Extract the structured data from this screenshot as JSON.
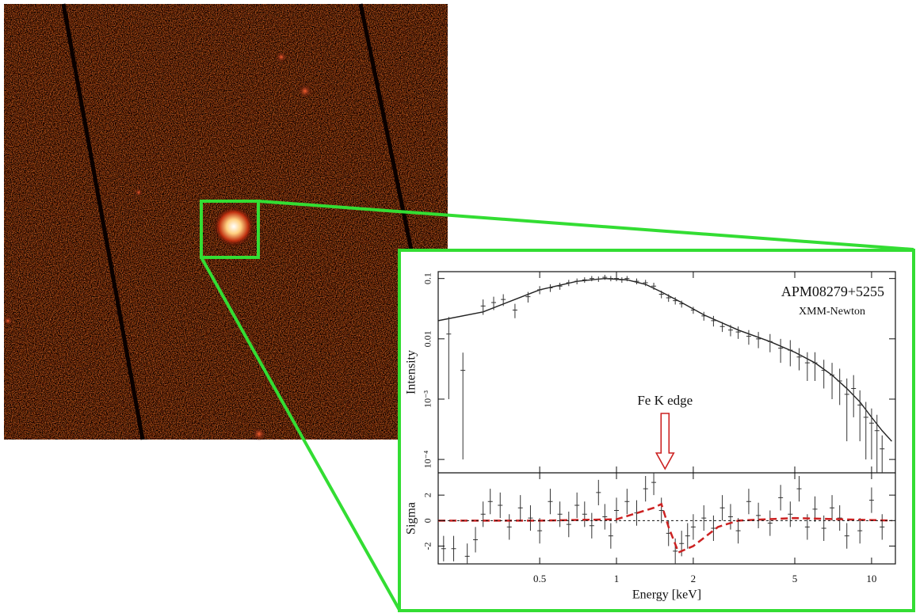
{
  "chart_data": [
    {
      "type": "line",
      "ylabel": "Intensity",
      "log_x": true,
      "log_y": true,
      "xlim": [
        0.2,
        12.4
      ],
      "ylim": [
        6e-05,
        0.13
      ],
      "yticks": [
        {
          "value": 0.1,
          "label": "0.1"
        },
        {
          "value": 0.01,
          "label": "0.01"
        },
        {
          "value": 0.001,
          "label": "10⁻³"
        },
        {
          "value": 0.0001,
          "label": "10⁻⁴"
        }
      ],
      "annotations": [
        {
          "text": "APM08279+5255"
        },
        {
          "text": "XMM-Newton"
        },
        {
          "text": "Fe K edge",
          "x": 1.55
        }
      ],
      "series": [
        {
          "style": "line",
          "color": "#222222",
          "x": [
            0.2,
            0.3,
            0.4,
            0.5,
            0.7,
            0.9,
            1.1,
            1.3,
            1.5,
            1.8,
            2.2,
            3,
            4,
            5,
            6,
            7,
            8,
            9,
            10,
            11,
            12
          ],
          "values": [
            0.02,
            0.028,
            0.045,
            0.065,
            0.09,
            0.1,
            0.095,
            0.08,
            0.06,
            0.04,
            0.025,
            0.014,
            0.009,
            0.006,
            0.004,
            0.0025,
            0.0015,
            0.0009,
            0.0005,
            0.0003,
            0.0002
          ]
        },
        {
          "style": "errorbar",
          "color": "#333333",
          "x": [
            0.22,
            0.25,
            0.3,
            0.33,
            0.36,
            0.4,
            0.45,
            0.5,
            0.55,
            0.6,
            0.65,
            0.7,
            0.75,
            0.8,
            0.85,
            0.9,
            0.95,
            1.0,
            1.05,
            1.1,
            1.2,
            1.3,
            1.4,
            1.5,
            1.6,
            1.7,
            1.8,
            2.0,
            2.2,
            2.4,
            2.6,
            2.8,
            3.0,
            3.3,
            3.6,
            4.0,
            4.4,
            4.8,
            5.2,
            5.6,
            6.0,
            6.5,
            7.0,
            7.5,
            8.0,
            8.5,
            9.0,
            9.5,
            10,
            10.5,
            11
          ],
          "values": [
            0.012,
            0.003,
            0.035,
            0.04,
            0.045,
            0.03,
            0.05,
            0.065,
            0.07,
            0.075,
            0.085,
            0.09,
            0.095,
            0.1,
            0.098,
            0.105,
            0.1,
            0.1,
            0.095,
            0.1,
            0.09,
            0.085,
            0.075,
            0.055,
            0.048,
            0.043,
            0.038,
            0.03,
            0.024,
            0.02,
            0.016,
            0.014,
            0.013,
            0.011,
            0.01,
            0.009,
            0.007,
            0.0065,
            0.005,
            0.004,
            0.004,
            0.003,
            0.0025,
            0.002,
            0.0012,
            0.0015,
            0.0008,
            0.0005,
            0.0004,
            0.0003,
            0.00015
          ],
          "errors": [
            0.011,
            0.0029,
            0.01,
            0.01,
            0.01,
            0.008,
            0.01,
            0.01,
            0.01,
            0.01,
            0.01,
            0.01,
            0.01,
            0.01,
            0.01,
            0.01,
            0.01,
            0.01,
            0.01,
            0.01,
            0.01,
            0.01,
            0.01,
            0.008,
            0.007,
            0.006,
            0.005,
            0.004,
            0.004,
            0.004,
            0.003,
            0.003,
            0.003,
            0.003,
            0.003,
            0.003,
            0.003,
            0.003,
            0.002,
            0.002,
            0.002,
            0.0015,
            0.0015,
            0.0012,
            0.001,
            0.001,
            0.0006,
            0.0004,
            0.0003,
            0.00025,
            0.0001
          ]
        }
      ]
    },
    {
      "type": "line",
      "xlabel": "Energy [keV]",
      "ylabel": "Sigma",
      "log_x": true,
      "xlim": [
        0.2,
        12.4
      ],
      "ylim": [
        -3.4,
        3.75
      ],
      "xticks": [
        0.5,
        1,
        2,
        5,
        10
      ],
      "yticks": [
        -2,
        0,
        2
      ],
      "series": [
        {
          "style": "errorbar",
          "color": "#333333",
          "x": [
            0.21,
            0.23,
            0.26,
            0.28,
            0.3,
            0.32,
            0.35,
            0.38,
            0.42,
            0.46,
            0.5,
            0.55,
            0.6,
            0.65,
            0.7,
            0.75,
            0.8,
            0.85,
            0.9,
            0.95,
            1.0,
            1.1,
            1.2,
            1.3,
            1.4,
            1.5,
            1.6,
            1.7,
            1.8,
            1.9,
            2.0,
            2.2,
            2.4,
            2.6,
            2.8,
            3.0,
            3.3,
            3.6,
            4.0,
            4.4,
            4.8,
            5.2,
            5.6,
            6.0,
            6.5,
            7,
            7.5,
            8,
            9,
            10,
            11
          ],
          "values": [
            -2.2,
            -2.2,
            -2.8,
            -1.5,
            0.5,
            1.5,
            1.2,
            -0.5,
            1,
            0.2,
            -0.8,
            1.5,
            0.5,
            -0.3,
            1.2,
            0.5,
            -0.4,
            2.2,
            0.3,
            -1.2,
            0.8,
            1.5,
            0.6,
            2.5,
            3.0,
            0.8,
            -1,
            -2.4,
            -1.8,
            -1.2,
            -0.5,
            0.2,
            -0.6,
            1,
            0.3,
            -0.8,
            1.5,
            0.4,
            -0.2,
            1.8,
            0.5,
            2.5,
            -0.5,
            0.9,
            -0.6,
            1,
            0.2,
            -1.2,
            -0.8,
            1.6,
            -0.5
          ],
          "errors": [
            1,
            1,
            1,
            1,
            1,
            1,
            1,
            1,
            1,
            1,
            1,
            1,
            1,
            1,
            1,
            1,
            1,
            1,
            1,
            1,
            1,
            1,
            1,
            1,
            1,
            1,
            1,
            1,
            1,
            1,
            1,
            1,
            1,
            1,
            1,
            1,
            1,
            1,
            1,
            1,
            1,
            1,
            1,
            1,
            1,
            1,
            1,
            1,
            1,
            1,
            1
          ]
        },
        {
          "style": "dashed",
          "color": "#cc2222",
          "x": [
            0.2,
            0.5,
            1,
            1.4,
            1.5,
            1.6,
            1.75,
            2,
            2.5,
            3,
            5,
            12
          ],
          "values": [
            0,
            0,
            0.1,
            1,
            1.3,
            -0.5,
            -2.5,
            -2,
            -0.5,
            0,
            0.2,
            0
          ]
        }
      ]
    }
  ]
}
